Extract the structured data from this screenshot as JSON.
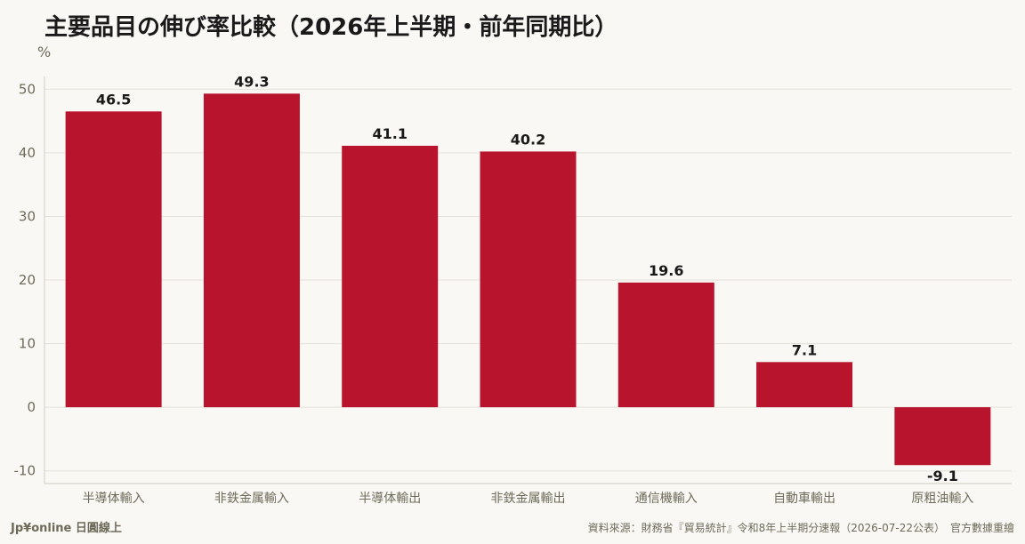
{
  "header": {
    "title": "主要品目の伸び率比較（2026年上半期・前年同期比）"
  },
  "chart_data": {
    "type": "bar",
    "title": "主要品目の伸び率比較（2026年上半期・前年同期比）",
    "ylabel": "%",
    "xlabel": "",
    "categories": [
      "半導体輸入",
      "非鉄金属輸入",
      "半導体輸出",
      "非鉄金属輸出",
      "通信機輸入",
      "自動車輸出",
      "原粗油輸入"
    ],
    "values": [
      46.5,
      49.3,
      41.1,
      40.2,
      19.6,
      7.1,
      -9.1
    ],
    "data_labels": [
      "46.5",
      "49.3",
      "41.1",
      "40.2",
      "19.6",
      "7.1",
      "-9.1"
    ],
    "ylim": [
      -12,
      52
    ],
    "yticks": [
      -10,
      0,
      10,
      20,
      30,
      40,
      50
    ],
    "grid": true,
    "legend": "none",
    "bar_color": "#b8142d"
  },
  "footer": {
    "brand": "Jp¥online 日圓線上",
    "source": "資料來源：財務省『貿易統計』令和8年上半期分速報（2026-07-22公表）　官方數據重繪"
  },
  "colors": {
    "background": "#faf8f4",
    "grid": "#e4e1da",
    "axis": "#cfcbc2",
    "tick_text": "#6e6a5a"
  }
}
